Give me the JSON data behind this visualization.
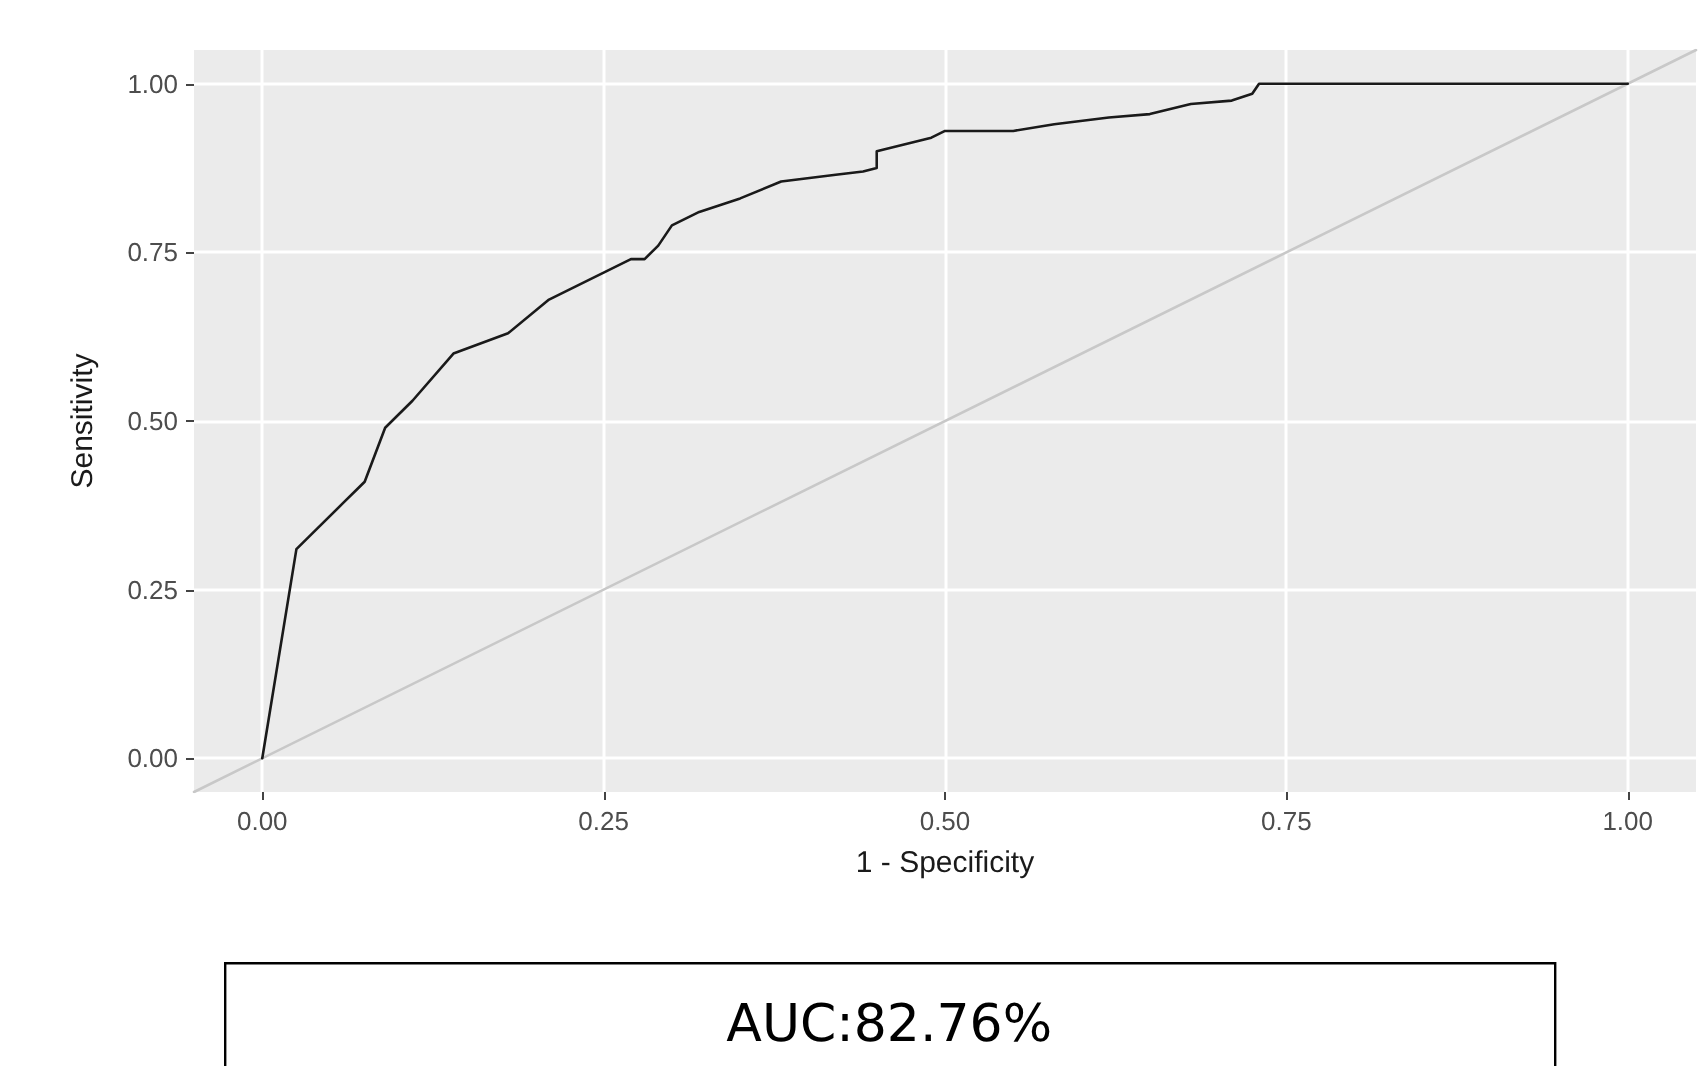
{
  "chart_data": {
    "type": "line",
    "xlabel": "1 - Specificity",
    "ylabel": "Sensitivity",
    "annotations": [
      "AUC:82.76%"
    ],
    "xlim": [
      -0.05,
      1.05
    ],
    "ylim": [
      -0.05,
      1.05
    ],
    "xticks": [
      {
        "value": 0,
        "label": "0.00"
      },
      {
        "value": 0.25,
        "label": "0.25"
      },
      {
        "value": 0.5,
        "label": "0.50"
      },
      {
        "value": 0.75,
        "label": "0.75"
      },
      {
        "value": 1,
        "label": "1.00"
      }
    ],
    "yticks": [
      {
        "value": 0,
        "label": "0.00"
      },
      {
        "value": 0.25,
        "label": "0.25"
      },
      {
        "value": 0.5,
        "label": "0.50"
      },
      {
        "value": 0.75,
        "label": "0.75"
      },
      {
        "value": 1,
        "label": "1.00"
      }
    ],
    "grid": true,
    "marker": "none",
    "line_style": "solid",
    "series": [
      {
        "color": "#1a1a1a",
        "x": [
          0,
          0.025,
          0.035,
          0.06,
          0.07,
          0.075,
          0.09,
          0.11,
          0.14,
          0.18,
          0.21,
          0.25,
          0.27,
          0.28,
          0.29,
          0.3,
          0.32,
          0.35,
          0.38,
          0.42,
          0.44,
          0.45,
          0.45,
          0.47,
          0.49,
          0.5,
          0.55,
          0.58,
          0.62,
          0.65,
          0.68,
          0.71,
          0.725,
          0.73,
          1.0
        ],
        "values": [
          0,
          0.31,
          0.33,
          0.38,
          0.4,
          0.41,
          0.49,
          0.53,
          0.6,
          0.63,
          0.68,
          0.72,
          0.74,
          0.74,
          0.76,
          0.79,
          0.81,
          0.83,
          0.855,
          0.865,
          0.87,
          0.875,
          0.9,
          0.91,
          0.92,
          0.93,
          0.93,
          0.94,
          0.95,
          0.955,
          0.97,
          0.975,
          0.985,
          1.0,
          1.0
        ]
      },
      {
        "color": "#c8c8c8",
        "x": [
          -0.05,
          1.05
        ],
        "values": [
          -0.05,
          1.05
        ]
      }
    ]
  }
}
